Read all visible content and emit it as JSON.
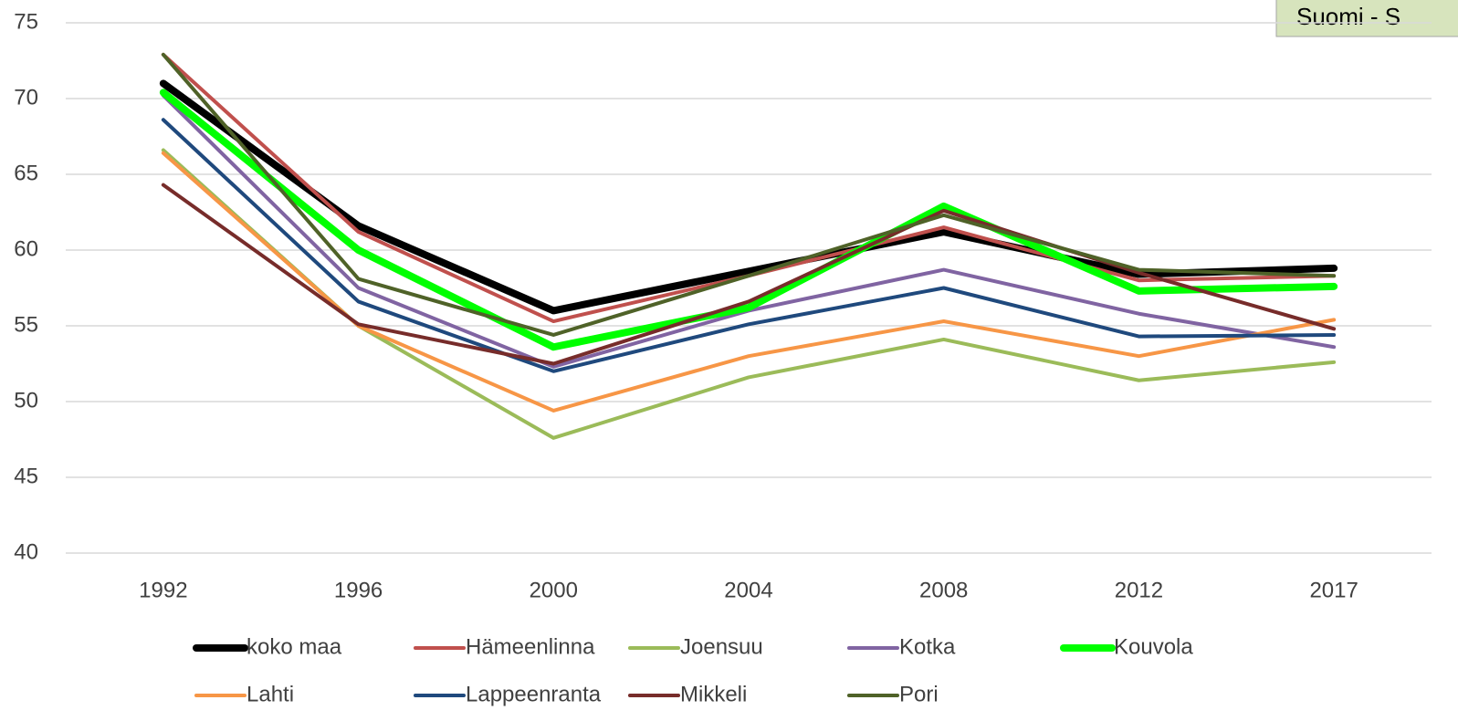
{
  "chart_data": {
    "type": "line",
    "annotation": "Suomi - S",
    "categories": [
      "1992",
      "1996",
      "2000",
      "2004",
      "2008",
      "2012",
      "2017"
    ],
    "ylim": [
      40,
      75
    ],
    "yticks": [
      40,
      45,
      50,
      55,
      60,
      65,
      70,
      75
    ],
    "grid": true,
    "series": [
      {
        "name": "koko maa",
        "color": "#000000",
        "values": [
          71.0,
          61.6,
          56.0,
          58.6,
          61.2,
          58.4,
          58.8
        ]
      },
      {
        "name": "Hämeenlinna",
        "color": "#c0504d",
        "values": [
          72.9,
          61.2,
          55.3,
          58.3,
          61.5,
          58.0,
          58.3
        ]
      },
      {
        "name": "Joensuu",
        "color": "#9bbb59",
        "values": [
          66.6,
          55.0,
          47.6,
          51.6,
          54.1,
          51.4,
          52.6
        ]
      },
      {
        "name": "Kotka",
        "color": "#8064a2",
        "values": [
          70.2,
          57.5,
          52.3,
          56.0,
          58.7,
          55.8,
          53.6
        ]
      },
      {
        "name": "Kouvola",
        "color": "#00ff00",
        "values": [
          70.4,
          60.0,
          53.6,
          56.2,
          62.9,
          57.3,
          57.6
        ]
      },
      {
        "name": "Lahti",
        "color": "#f79646",
        "values": [
          66.4,
          55.0,
          49.4,
          53.0,
          55.3,
          53.0,
          55.4
        ]
      },
      {
        "name": "Lappeenranta",
        "color": "#1f497d",
        "values": [
          68.6,
          56.6,
          52.0,
          55.1,
          57.5,
          54.3,
          54.4
        ]
      },
      {
        "name": "Mikkeli",
        "color": "#772c2a",
        "values": [
          64.3,
          55.1,
          52.5,
          56.6,
          62.6,
          58.5,
          54.8
        ]
      },
      {
        "name": "Pori",
        "color": "#4f6228",
        "values": [
          72.9,
          58.1,
          54.4,
          58.3,
          62.3,
          58.7,
          58.3
        ]
      }
    ]
  }
}
